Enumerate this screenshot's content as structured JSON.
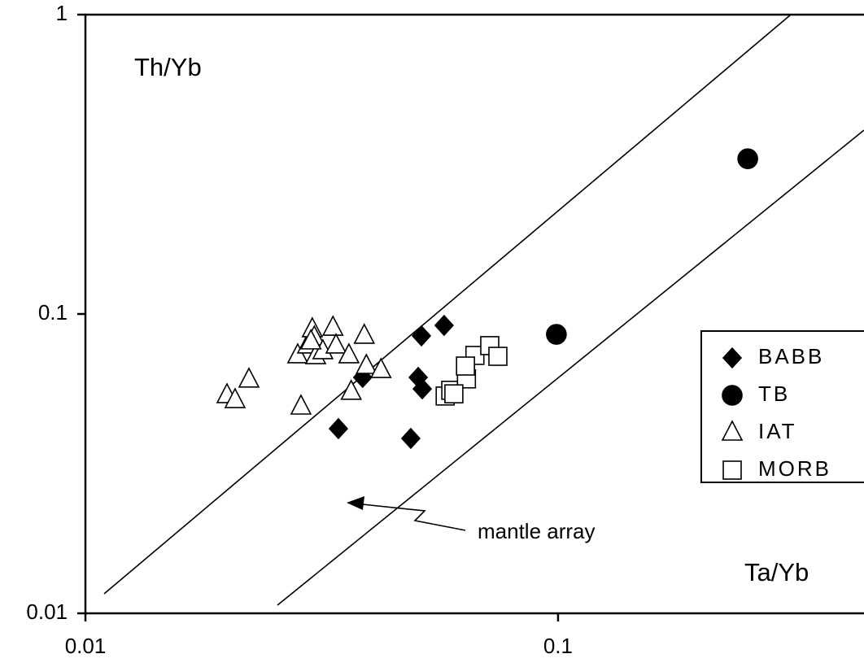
{
  "chart_data": {
    "type": "scatter",
    "x_label": "Ta/Yb",
    "y_label": "Th/Yb",
    "annotation": "mantle array",
    "xscale": "log",
    "yscale": "log",
    "xlim": [
      0.01,
      0.444
    ],
    "ylim": [
      0.01,
      1
    ],
    "xticks": [
      0.01,
      0.1
    ],
    "yticks": [
      0.01,
      0.1,
      1
    ],
    "legend": "right",
    "series": [
      {
        "name": "BABB",
        "color": "#000000",
        "marker": "diamond",
        "filled": true,
        "x": [
          0.0343,
          0.0386,
          0.0488,
          0.0506,
          0.0516,
          0.0514,
          0.0574
        ],
        "y": [
          0.0414,
          0.0614,
          0.0384,
          0.0614,
          0.0562,
          0.0845,
          0.0916
        ]
      },
      {
        "name": "TB",
        "color": "#000000",
        "marker": "circle",
        "filled": true,
        "x": [
          0.0992,
          0.252
        ],
        "y": [
          0.0855,
          0.33
        ]
      },
      {
        "name": "IAT",
        "color": "#000000",
        "marker": "triangle",
        "filled": false,
        "x": [
          0.01993,
          0.02073,
          0.02218,
          0.02858,
          0.02813,
          0.02951,
          0.0302,
          0.0307,
          0.0305,
          0.0318,
          0.0334,
          0.0339,
          0.0361,
          0.0365,
          0.0389,
          0.0393,
          0.0422,
          0.03
        ],
        "y": [
          0.0535,
          0.0515,
          0.0603,
          0.049,
          0.0727,
          0.0784,
          0.0888,
          0.0722,
          0.0834,
          0.075,
          0.0899,
          0.0784,
          0.0727,
          0.0549,
          0.0845,
          0.067,
          0.0649,
          0.0809
        ]
      },
      {
        "name": "MORB",
        "color": "#000000",
        "marker": "square",
        "filled": false,
        "x": [
          0.0577,
          0.0593,
          0.064,
          0.0667,
          0.0717,
          0.0746,
          0.0637,
          0.0602
        ],
        "y": [
          0.0532,
          0.0556,
          0.0607,
          0.0727,
          0.0784,
          0.0722,
          0.067,
          0.0541
        ]
      }
    ]
  }
}
